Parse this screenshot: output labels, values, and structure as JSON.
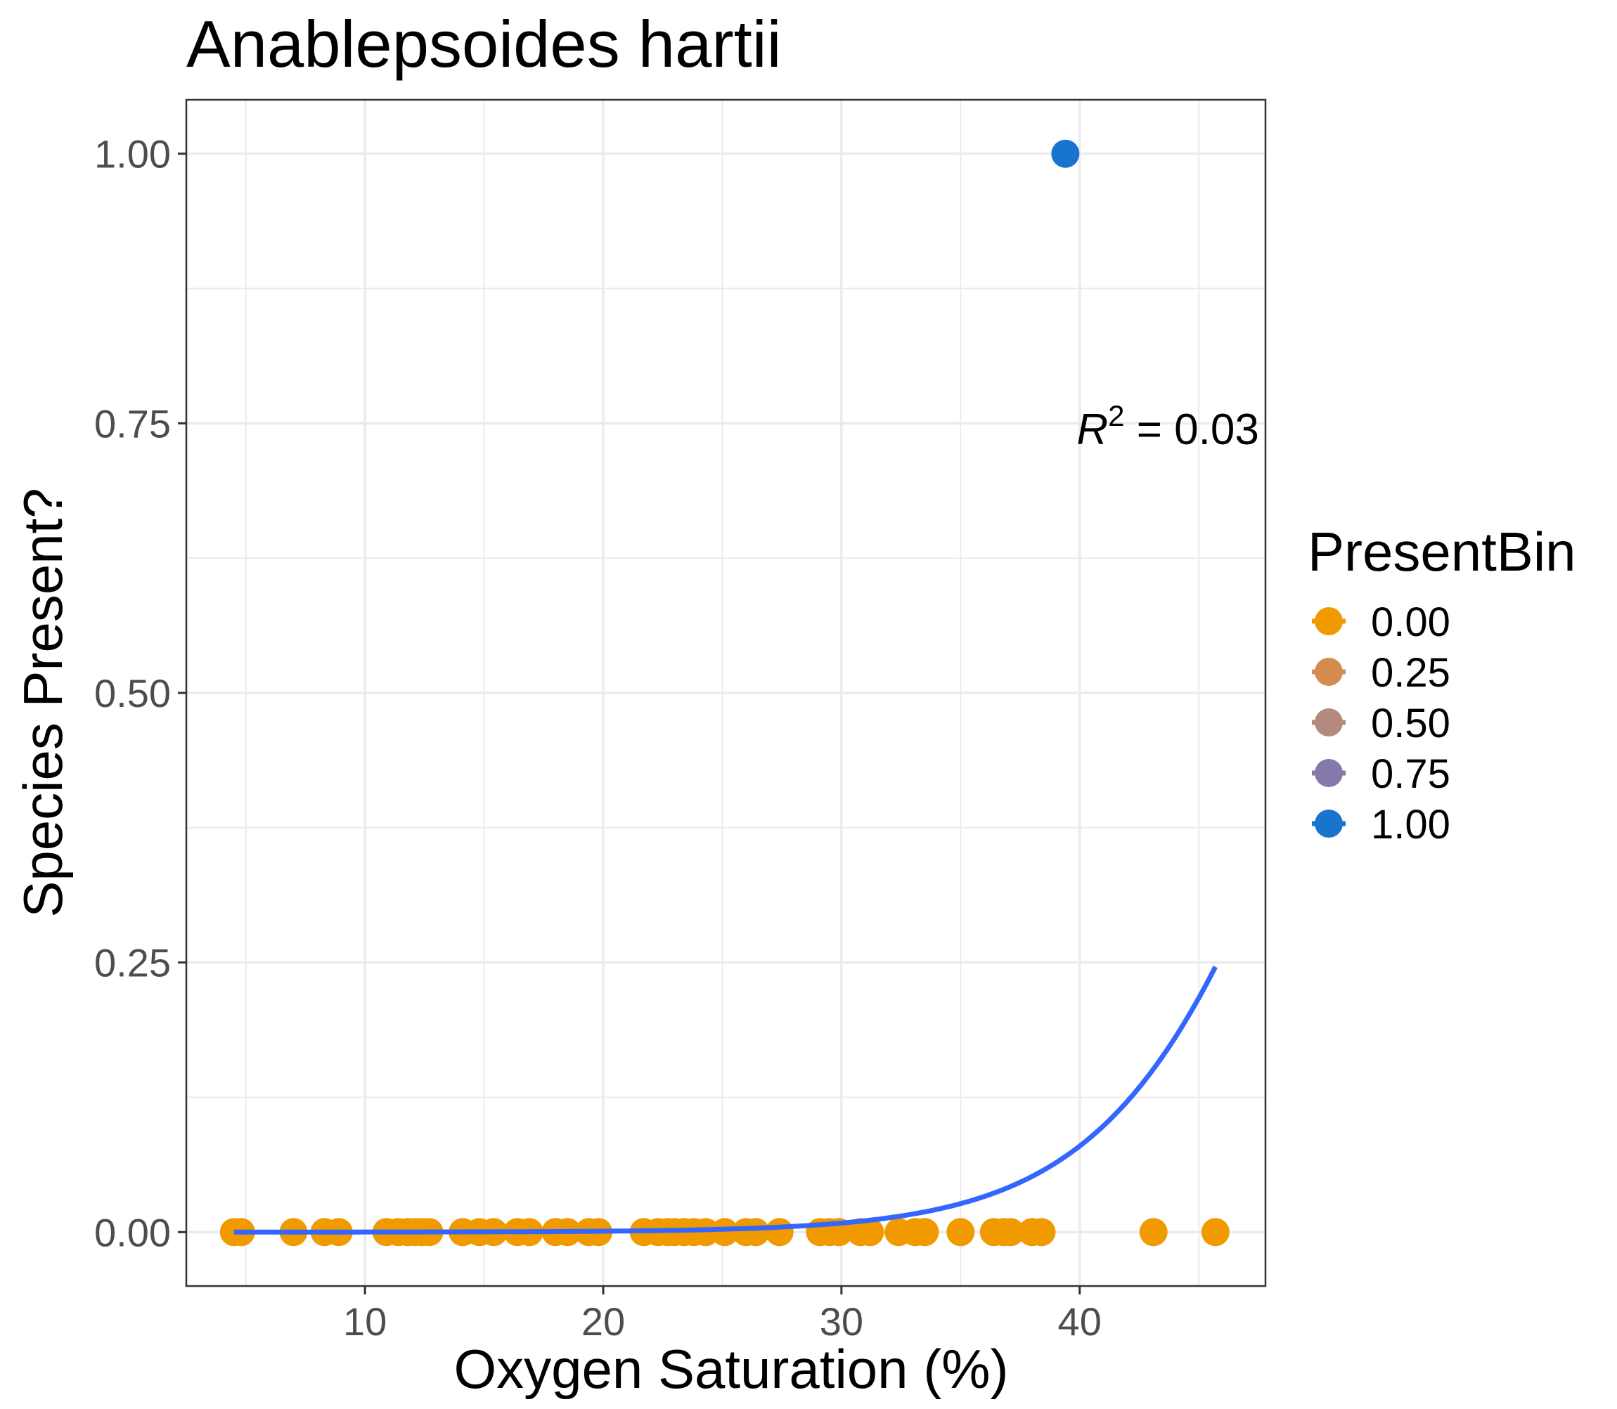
{
  "chart_data": {
    "type": "scatter",
    "title": "Anablepsoides hartii",
    "xlabel": "Oxygen Saturation (%)",
    "ylabel": "Species Present?",
    "xlim": [
      2.5,
      47.8
    ],
    "ylim": [
      -0.05,
      1.05
    ],
    "x_ticks": [
      10,
      20,
      30,
      40
    ],
    "x_tick_labels": [
      "10",
      "20",
      "30",
      "40"
    ],
    "y_ticks": [
      0,
      0.25,
      0.5,
      0.75,
      1.0
    ],
    "y_tick_labels": [
      "0.00",
      "0.25",
      "0.50",
      "0.75",
      "1.00"
    ],
    "grid": true,
    "legend": {
      "title": "PresentBin",
      "position": "right",
      "entries": [
        {
          "label": "0.00",
          "color": "#F09A00"
        },
        {
          "label": "0.25",
          "color": "#D48C4E"
        },
        {
          "label": "0.50",
          "color": "#B38A7E"
        },
        {
          "label": "0.75",
          "color": "#8479A8"
        },
        {
          "label": "1.00",
          "color": "#1874CD"
        }
      ]
    },
    "annotation": {
      "prefix": "R",
      "superscript": "2",
      "text": " = 0.03",
      "x": 43.7,
      "y": 0.745
    },
    "points": [
      {
        "x": 4.5,
        "y": 0
      },
      {
        "x": 4.8,
        "y": 0
      },
      {
        "x": 7.0,
        "y": 0
      },
      {
        "x": 8.3,
        "y": 0
      },
      {
        "x": 8.9,
        "y": 0
      },
      {
        "x": 10.9,
        "y": 0
      },
      {
        "x": 11.4,
        "y": 0
      },
      {
        "x": 11.8,
        "y": 0
      },
      {
        "x": 12.1,
        "y": 0
      },
      {
        "x": 12.4,
        "y": 0
      },
      {
        "x": 12.7,
        "y": 0
      },
      {
        "x": 14.1,
        "y": 0
      },
      {
        "x": 14.8,
        "y": 0
      },
      {
        "x": 15.4,
        "y": 0
      },
      {
        "x": 16.4,
        "y": 0
      },
      {
        "x": 16.9,
        "y": 0
      },
      {
        "x": 18.0,
        "y": 0
      },
      {
        "x": 18.5,
        "y": 0
      },
      {
        "x": 19.4,
        "y": 0
      },
      {
        "x": 19.8,
        "y": 0
      },
      {
        "x": 21.7,
        "y": 0
      },
      {
        "x": 22.3,
        "y": 0
      },
      {
        "x": 22.7,
        "y": 0
      },
      {
        "x": 23.0,
        "y": 0
      },
      {
        "x": 23.4,
        "y": 0
      },
      {
        "x": 23.8,
        "y": 0
      },
      {
        "x": 24.3,
        "y": 0
      },
      {
        "x": 25.1,
        "y": 0
      },
      {
        "x": 26.0,
        "y": 0
      },
      {
        "x": 26.4,
        "y": 0
      },
      {
        "x": 27.4,
        "y": 0
      },
      {
        "x": 29.1,
        "y": 0
      },
      {
        "x": 29.5,
        "y": 0
      },
      {
        "x": 29.9,
        "y": 0
      },
      {
        "x": 30.8,
        "y": 0
      },
      {
        "x": 31.2,
        "y": 0
      },
      {
        "x": 32.4,
        "y": 0
      },
      {
        "x": 33.1,
        "y": 0
      },
      {
        "x": 33.5,
        "y": 0
      },
      {
        "x": 35.0,
        "y": 0
      },
      {
        "x": 36.4,
        "y": 0
      },
      {
        "x": 36.8,
        "y": 0
      },
      {
        "x": 37.1,
        "y": 0
      },
      {
        "x": 38.0,
        "y": 0
      },
      {
        "x": 38.4,
        "y": 0
      },
      {
        "x": 43.1,
        "y": 0
      },
      {
        "x": 45.7,
        "y": 0
      },
      {
        "x": 39.4,
        "y": 1
      }
    ],
    "fit_line": {
      "type": "logistic",
      "color": "#3366FF",
      "x_range": [
        4.5,
        45.7
      ],
      "intercept": -11.75,
      "slope": 0.2326
    }
  }
}
